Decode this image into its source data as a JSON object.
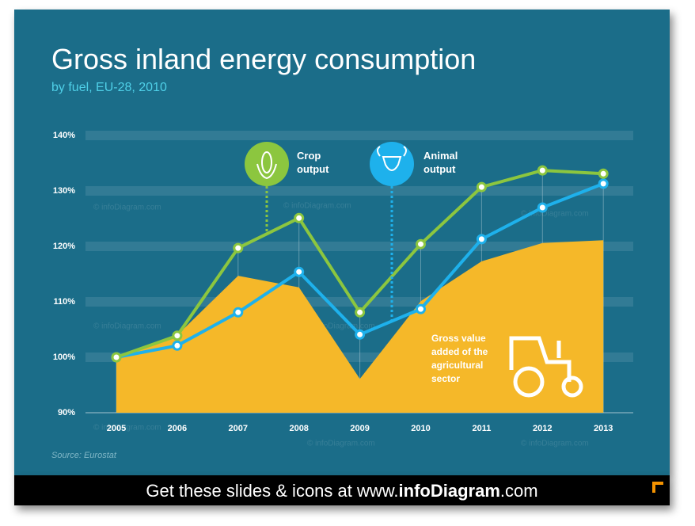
{
  "title": "Gross inland energy consumption",
  "subtitle": "by fuel, EU-28, 2010",
  "source": "Source: Eurostat",
  "watermark": "© infoDiagram.com",
  "footer": {
    "prefix": "Get these slides & icons at www.",
    "brand": "infoDiagram",
    "suffix": ".com"
  },
  "chart_data": {
    "type": "line",
    "categories": [
      "2005",
      "2006",
      "2007",
      "2008",
      "2009",
      "2010",
      "2011",
      "2012",
      "2013"
    ],
    "ylim": [
      90,
      140
    ],
    "yticks": [
      {
        "value": 90,
        "label": "90%"
      },
      {
        "value": 100,
        "label": "100%"
      },
      {
        "value": 110,
        "label": "110%"
      },
      {
        "value": 120,
        "label": "120%"
      },
      {
        "value": 130,
        "label": "130%"
      },
      {
        "value": 140,
        "label": "140%"
      }
    ],
    "series": [
      {
        "name": "Gross value added of the agricultural sector",
        "type": "area",
        "color": "#f5b829",
        "values": [
          100,
          104,
          114.7,
          112.6,
          96.1,
          110.1,
          117.3,
          120.6,
          121.1
        ]
      },
      {
        "name": "Animal output",
        "type": "line",
        "color": "#1eb1ec",
        "values": [
          100,
          102.1,
          108.1,
          115.4,
          104.1,
          108.7,
          121.3,
          127,
          131.3
        ]
      },
      {
        "name": "Crop output",
        "type": "line",
        "color": "#8cc63f",
        "values": [
          100,
          103.9,
          119.7,
          125.1,
          108.1,
          120.4,
          130.7,
          133.7,
          133.1
        ]
      }
    ]
  }
}
